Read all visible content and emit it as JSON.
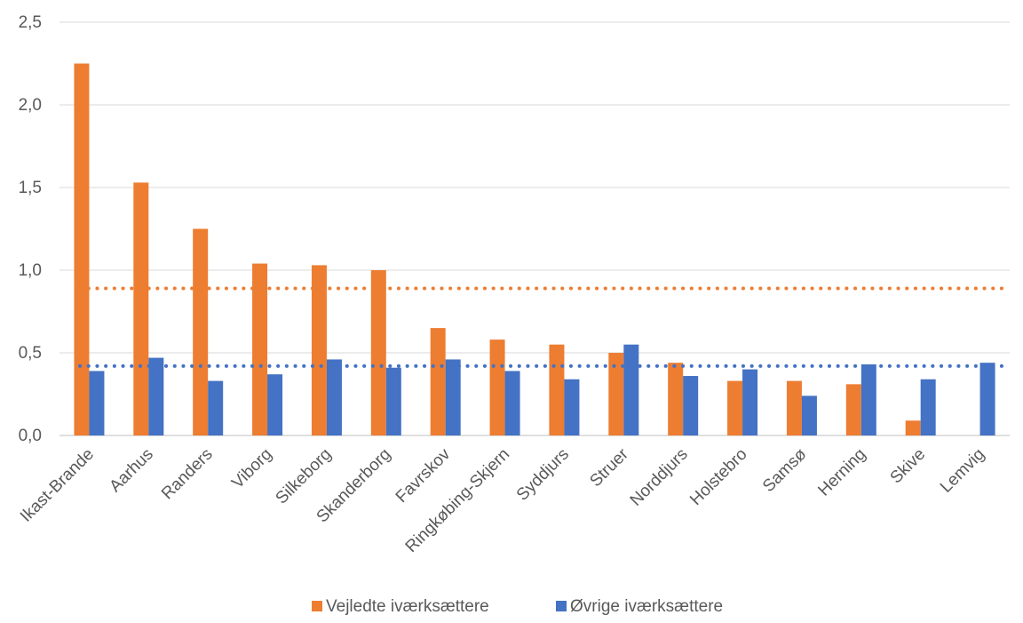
{
  "chart_data": {
    "type": "bar",
    "title": "",
    "xlabel": "",
    "ylabel": "",
    "ylim": [
      0,
      2.5
    ],
    "yticks": [
      "0,0",
      "0,5",
      "1,0",
      "1,5",
      "2,0",
      "2,5"
    ],
    "grid": true,
    "legend_position": "bottom",
    "categories": [
      "Ikast-Brande",
      "Aarhus",
      "Randers",
      "Viborg",
      "Silkeborg",
      "Skanderborg",
      "Favrskov",
      "Ringkøbing-Skjern",
      "Syddjurs",
      "Struer",
      "Norddjurs",
      "Holstebro",
      "Samsø",
      "Herning",
      "Skive",
      "Lemvig"
    ],
    "series": [
      {
        "name": "Vejledte iværksættere",
        "color": "#ED7D31",
        "values": [
          2.25,
          1.53,
          1.25,
          1.04,
          1.03,
          1.0,
          0.65,
          0.58,
          0.55,
          0.5,
          0.44,
          0.33,
          0.33,
          0.31,
          0.09,
          0
        ]
      },
      {
        "name": "Øvrige iværksættere",
        "color": "#4472C4",
        "values": [
          0.39,
          0.47,
          0.33,
          0.37,
          0.46,
          0.41,
          0.46,
          0.39,
          0.34,
          0.55,
          0.36,
          0.4,
          0.24,
          0.43,
          0.34,
          0.44
        ]
      }
    ],
    "reference_lines": [
      {
        "series": "Vejledte iværksættere",
        "value": 0.89,
        "style": "dotted",
        "color": "#ED7D31"
      },
      {
        "series": "Øvrige iværksættere",
        "value": 0.42,
        "style": "dotted",
        "color": "#4472C4"
      }
    ]
  }
}
